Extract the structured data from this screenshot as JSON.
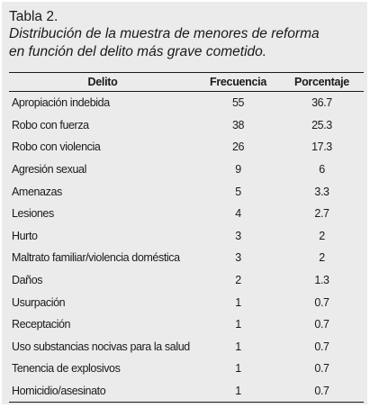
{
  "caption": {
    "label": "Tabla 2.",
    "line1": "Distribución de la muestra de menores de reforma",
    "line2": "en función del delito más grave cometido."
  },
  "table": {
    "headers": [
      "Delito",
      "Frecuencia",
      "Porcentaje"
    ],
    "rows": [
      [
        "Apropiación indebida",
        "55",
        "36.7"
      ],
      [
        "Robo con fuerza",
        "38",
        "25.3"
      ],
      [
        "Robo con violencia",
        "26",
        "17.3"
      ],
      [
        "Agresión sexual",
        "9",
        "6"
      ],
      [
        "Amenazas",
        "5",
        "3.3"
      ],
      [
        "Lesiones",
        "4",
        "2.7"
      ],
      [
        "Hurto",
        "3",
        "2"
      ],
      [
        "Maltrato familiar/violencia doméstica",
        "3",
        "2"
      ],
      [
        "Daños",
        "2",
        "1.3"
      ],
      [
        "Usurpación",
        "1",
        "0.7"
      ],
      [
        "Receptación",
        "1",
        "0.7"
      ],
      [
        "Uso substancias nocivas para la salud",
        "1",
        "0.7"
      ],
      [
        "Tenencia de explosivos",
        "1",
        "0.7"
      ],
      [
        "Homicidio/asesinato",
        "1",
        "0.7"
      ]
    ]
  },
  "colors": {
    "background": "#ecebeb",
    "text": "#1a1a1a",
    "rule": "#1a1a1a"
  }
}
